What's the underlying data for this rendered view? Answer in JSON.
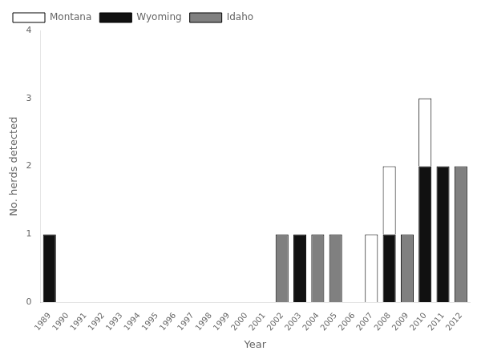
{
  "chart_data": {
    "type": "bar",
    "stacked": true,
    "x_label": "Year",
    "y_label": "No. herds detected",
    "categories": [
      "1989",
      "1990",
      "1991",
      "1992",
      "1993",
      "1994",
      "1995",
      "1996",
      "1997",
      "1998",
      "1999",
      "2000",
      "2001",
      "2002",
      "2003",
      "2004",
      "2005",
      "2006",
      "2007",
      "2008",
      "2009",
      "2010",
      "2011",
      "2012"
    ],
    "series": [
      {
        "name": "Idaho",
        "color": "#808080",
        "values": [
          0,
          0,
          0,
          0,
          0,
          0,
          0,
          0,
          0,
          0,
          0,
          0,
          0,
          1,
          0,
          1,
          1,
          0,
          0,
          0,
          1,
          0,
          0,
          2
        ]
      },
      {
        "name": "Wyoming",
        "color": "#111111",
        "values": [
          1,
          0,
          0,
          0,
          0,
          0,
          0,
          0,
          0,
          0,
          0,
          0,
          0,
          0,
          1,
          0,
          0,
          0,
          0,
          1,
          0,
          2,
          2,
          0
        ]
      },
      {
        "name": "Montana",
        "color": "#ffffff",
        "values": [
          0,
          0,
          0,
          0,
          0,
          0,
          0,
          0,
          0,
          0,
          0,
          0,
          0,
          0,
          0,
          0,
          0,
          0,
          1,
          1,
          0,
          1,
          0,
          0
        ]
      }
    ],
    "ylim": [
      0,
      4
    ],
    "yticks": [
      0,
      1,
      2,
      3,
      4
    ],
    "grid": false,
    "legend": "upper left"
  }
}
